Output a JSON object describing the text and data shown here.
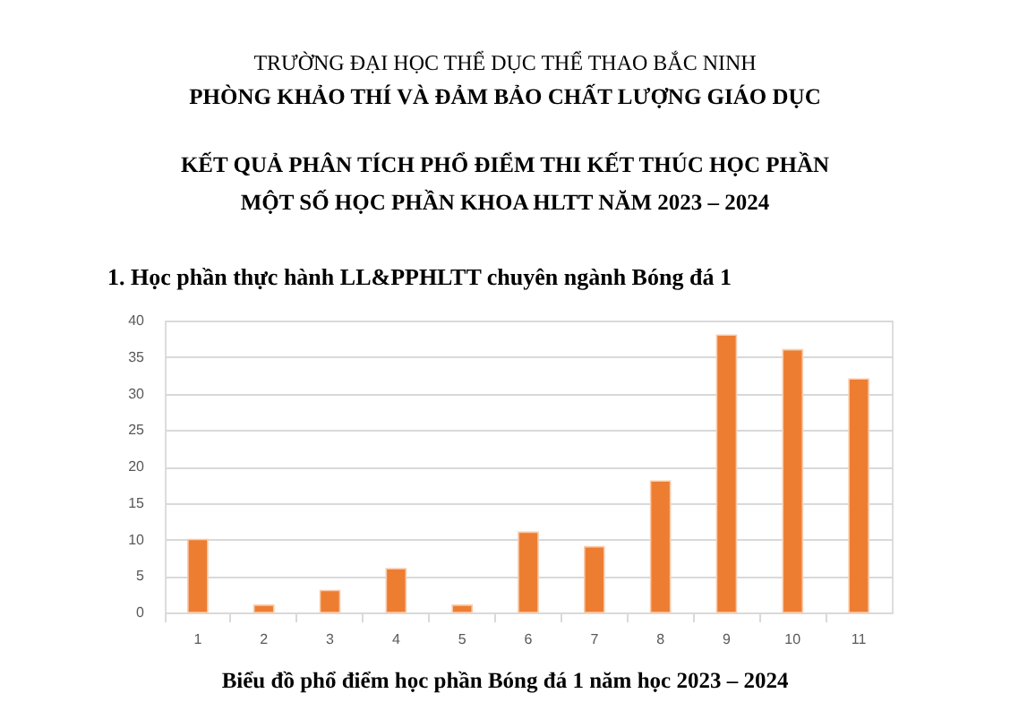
{
  "chart_data": {
    "type": "bar",
    "annotations": [
      "TRƯỜNG ĐẠI HỌC THỂ DỤC THỂ THAO BẮC NINH",
      "PHÒNG KHẢO THÍ VÀ ĐẢM BẢO CHẤT LƯỢNG GIÁO DỤC",
      "KẾT QUẢ PHÂN TÍCH  PHỔ ĐIỂM THI KẾT THÚC HỌC PHẦN",
      "MỘT SỐ HỌC PHẦN KHOA HLTT NĂM 2023 – 2024",
      "1. Học phần thực hành LL&PPHLTT chuyên ngành Bóng đá 1",
      "Biểu đồ phổ điểm học phần Bóng đá 1 năm học 2023 – 2024"
    ],
    "categories": [
      "1",
      "2",
      "3",
      "4",
      "5",
      "6",
      "7",
      "8",
      "9",
      "10",
      "11"
    ],
    "values": [
      10,
      1,
      3,
      6,
      1,
      11,
      9,
      18,
      38,
      36,
      32
    ],
    "color": "#ed7d31",
    "ylim": [
      0,
      40
    ],
    "yticks": [
      0,
      5,
      10,
      15,
      20,
      25,
      30,
      35,
      40
    ],
    "grid": "y"
  }
}
